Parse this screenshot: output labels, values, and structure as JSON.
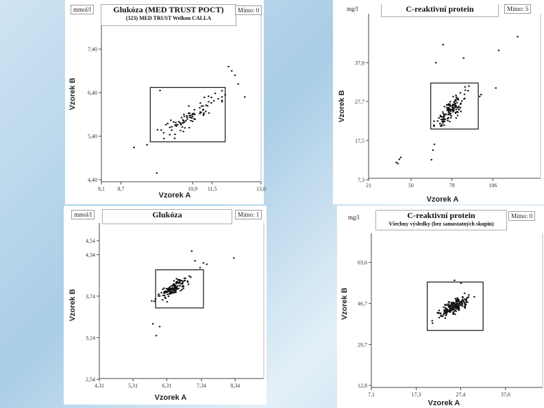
{
  "chart_data": [
    {
      "type": "scatter",
      "unit": "mmol/l",
      "title": "Glukóza (MED TRUST POCT)",
      "subtitle": "(323) MED TRUST Welkon CALLA",
      "outliers": "Mimo: 0",
      "xlabel": "Vzorek A",
      "ylabel": "Vzorek B",
      "xticks": [
        "8,1",
        "8,7",
        "10,9",
        "11,5",
        "13,0"
      ],
      "yticks": [
        "7,40",
        "6,40",
        "5,40",
        "4,40"
      ],
      "xlim": [
        8.1,
        13.0
      ],
      "ylim": [
        4.4,
        7.9
      ],
      "box": {
        "x": [
          9.6,
          11.9
        ],
        "y": [
          5.27,
          6.52
        ]
      },
      "points": [
        [
          9.1,
          5.14
        ],
        [
          9.5,
          5.2
        ],
        [
          9.8,
          4.55
        ],
        [
          10.2,
          5.6
        ],
        [
          10.35,
          5.35
        ],
        [
          9.9,
          6.45
        ],
        [
          11.9,
          6.35
        ],
        [
          12.1,
          6.9
        ],
        [
          12.3,
          6.6
        ],
        [
          12.5,
          6.3
        ],
        [
          12.0,
          7.0
        ],
        [
          12.2,
          6.8
        ]
      ],
      "cluster": {
        "center": [
          10.8,
          5.85
        ],
        "spread": [
          0.8,
          0.45
        ],
        "n": 85,
        "seed": 11,
        "clip": true
      }
    },
    {
      "type": "scatter",
      "unit": "mg/l",
      "title": "C-reaktivní protein",
      "subtitle": "",
      "outliers": "Mimo: 5",
      "xlabel": "Vzorek A",
      "ylabel": "Vzorek B",
      "xticks": [
        "21",
        "50",
        "78",
        "106"
      ],
      "yticks": [
        "37,8",
        "27,7",
        "17,5",
        "7,3"
      ],
      "xlim": [
        21,
        133
      ],
      "ylim": [
        7.3,
        47.0
      ],
      "box": {
        "x": [
          63.5,
          96.0
        ],
        "y": [
          20.5,
          32.5
        ]
      },
      "points": [
        [
          40,
          11.8
        ],
        [
          41,
          11.5
        ],
        [
          42,
          12.6
        ],
        [
          43,
          13.1
        ],
        [
          64,
          12.5
        ],
        [
          65,
          15.0
        ],
        [
          66,
          16.5
        ],
        [
          67,
          37.8
        ],
        [
          72,
          42.5
        ],
        [
          86,
          39.0
        ],
        [
          108,
          31.2
        ],
        [
          110,
          41.0
        ],
        [
          123,
          44.6
        ],
        [
          97,
          29.0
        ],
        [
          98,
          29.5
        ],
        [
          87,
          31.5
        ],
        [
          89,
          30.5
        ]
      ],
      "cluster": {
        "center": [
          77,
          25.5
        ],
        "spread": [
          9.5,
          4.2
        ],
        "n": 140,
        "seed": 23,
        "clip": true
      }
    },
    {
      "type": "scatter",
      "unit": "mmol/l",
      "title": "Glukóza",
      "subtitle": "",
      "outliers": "Mimo: 1",
      "xlabel": "Vzorek A",
      "ylabel": "Vzorek B",
      "xticks": [
        "4,31",
        "5,31",
        "6,31",
        "7,34",
        "8,34"
      ],
      "yticks": [
        "4,54",
        "4,34",
        "3,74",
        "3,14",
        "2,54"
      ],
      "xlim": [
        4.31,
        8.6
      ],
      "ylim": [
        2.54,
        4.65
      ],
      "box": {
        "x": [
          5.98,
          7.4
        ],
        "y": [
          3.57,
          4.12
        ]
      },
      "points": [
        [
          6.0,
          3.17
        ],
        [
          5.9,
          3.34
        ],
        [
          6.1,
          3.3
        ],
        [
          7.05,
          4.39
        ],
        [
          8.3,
          4.29
        ],
        [
          7.4,
          4.22
        ],
        [
          7.5,
          4.2
        ],
        [
          7.15,
          4.25
        ],
        [
          7.3,
          4.15
        ]
      ],
      "cluster": {
        "center": [
          6.5,
          3.85
        ],
        "spread": [
          0.4,
          0.15
        ],
        "n": 150,
        "seed": 37,
        "clip": false
      }
    },
    {
      "type": "scatter",
      "unit": "mg/l",
      "title": "C-reaktivní protein",
      "subtitle": "Všechny výsledky (bez samostatných skupin)",
      "outliers": "Mimo: 0",
      "xlabel": "Vzorek A",
      "ylabel": "Vzorek B",
      "xticks": [
        "7,1",
        "17,3",
        "27,4",
        "37,6"
      ],
      "yticks": [
        "63,6",
        "46,7",
        "29,7",
        "12,8"
      ],
      "xlim": [
        7.1,
        44.0
      ],
      "ylim": [
        12.8,
        74.0
      ],
      "box": {
        "x": [
          19.8,
          32.5
        ],
        "y": [
          35.5,
          55.5
        ]
      },
      "points": [
        [
          26.0,
          56.2
        ],
        [
          21.0,
          38.5
        ],
        [
          27.5,
          55.0
        ]
      ],
      "cluster": {
        "center": [
          26.0,
          45.5
        ],
        "spread": [
          3.2,
          4.2
        ],
        "n": 190,
        "seed": 51,
        "clip": true
      }
    }
  ]
}
